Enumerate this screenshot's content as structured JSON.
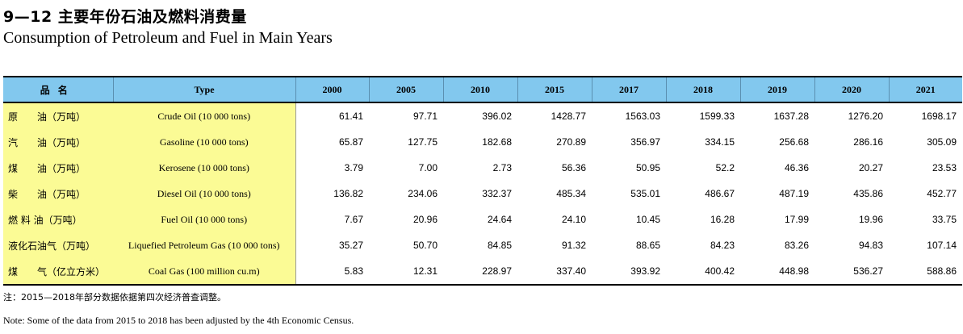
{
  "title_cn": "9—12  主要年份石油及燃料消费量",
  "title_en": "Consumption of Petroleum and Fuel in Main Years",
  "header": {
    "name_cn": "品名",
    "type": "Type",
    "years": [
      "2000",
      "2005",
      "2010",
      "2015",
      "2017",
      "2018",
      "2019",
      "2020",
      "2021"
    ]
  },
  "rows": [
    {
      "cn": "原　　油（万吨）",
      "en": "Crude Oil  (10 000 tons)",
      "values": [
        "61.41",
        "97.71",
        "396.02",
        "1428.77",
        "1563.03",
        "1599.33",
        "1637.28",
        "1276.20",
        "1698.17"
      ]
    },
    {
      "cn": "汽　　油（万吨）",
      "en": "Gasoline  (10 000 tons)",
      "values": [
        "65.87",
        "127.75",
        "182.68",
        "270.89",
        "356.97",
        "334.15",
        "256.68",
        "286.16",
        "305.09"
      ]
    },
    {
      "cn": "煤　　油（万吨）",
      "en": "Kerosene  (10 000 tons)",
      "values": [
        "3.79",
        "7.00",
        "2.73",
        "56.36",
        "50.95",
        "52.2",
        "46.36",
        "20.27",
        "23.53"
      ]
    },
    {
      "cn": "柴　　油（万吨）",
      "en": "Diesel Oil  (10 000 tons)",
      "values": [
        "136.82",
        "234.06",
        "332.37",
        "485.34",
        "535.01",
        "486.67",
        "487.19",
        "435.86",
        "452.77"
      ]
    },
    {
      "cn": " 燃 料 油（万吨）",
      "en": "Fuel Oil  (10 000 tons)",
      "values": [
        "7.67",
        "20.96",
        "24.64",
        "24.10",
        "10.45",
        "16.28",
        "17.99",
        "19.96",
        "33.75"
      ]
    },
    {
      "cn": "液化石油气（万吨）",
      "en": "Liquefied Petroleum Gas (10 000 tons)",
      "values": [
        "35.27",
        "50.70",
        "84.85",
        "91.32",
        "88.65",
        "84.23",
        "83.26",
        "94.83",
        "107.14"
      ]
    },
    {
      "cn": "煤　　气（亿立方米）",
      "en": "Coal Gas (100 million cu.m)",
      "values": [
        "5.83",
        "12.31",
        "228.97",
        "337.40",
        "393.92",
        "400.42",
        "448.98",
        "536.27",
        "588.86"
      ]
    }
  ],
  "note_cn": "注：2015—2018年部分数据依据第四次经济普查调整。",
  "note_en": "Note: Some of the data from 2015 to 2018 has been adjusted by the 4th Economic Census."
}
